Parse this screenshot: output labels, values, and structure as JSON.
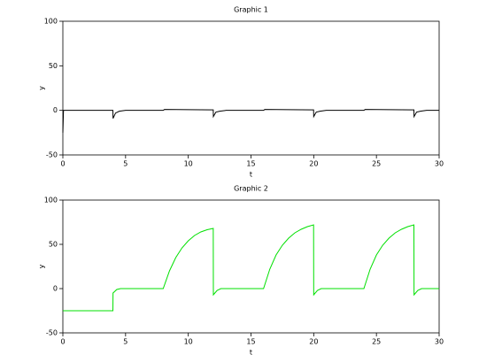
{
  "chart_data": [
    {
      "type": "line",
      "title": "Graphic 1",
      "x_label": "t",
      "y_label": "y",
      "xlim": [
        0,
        30
      ],
      "ylim": [
        -50,
        100
      ],
      "xticks": [
        0,
        5,
        10,
        15,
        20,
        25,
        30
      ],
      "yticks": [
        -50,
        0,
        50,
        100
      ],
      "series": [
        {
          "color": "#000000",
          "x": [
            0,
            0.05,
            3.99,
            4,
            4.2,
            4.5,
            5,
            8,
            8.1,
            11.99,
            12,
            12.2,
            12.5,
            13,
            16,
            16.1,
            19.99,
            20,
            20.2,
            20.5,
            21,
            24,
            24.1,
            27.99,
            28,
            28.2,
            28.5,
            29,
            30
          ],
          "values": [
            -25,
            0,
            0,
            -9,
            -3,
            -1,
            0,
            0,
            1,
            0.5,
            -7,
            -2,
            -1,
            0,
            0,
            1,
            0.5,
            -7,
            -2,
            -1,
            0,
            0,
            1,
            0.5,
            -7,
            -2,
            -1,
            0,
            0
          ]
        }
      ]
    },
    {
      "type": "line",
      "title": "Graphic 2",
      "x_label": "t",
      "y_label": "y",
      "xlim": [
        0,
        30
      ],
      "ylim": [
        -50,
        100
      ],
      "xticks": [
        0,
        5,
        10,
        15,
        20,
        25,
        30
      ],
      "yticks": [
        -50,
        0,
        50,
        100
      ],
      "series": [
        {
          "color": "#00e000",
          "x": [
            0,
            3.99,
            4,
            4.3,
            4.6,
            8,
            8.5,
            9,
            9.5,
            10,
            10.5,
            11,
            11.5,
            11.99,
            12,
            12.3,
            12.6,
            16,
            16.5,
            17,
            17.5,
            18,
            18.5,
            19,
            19.5,
            19.99,
            20,
            20.3,
            20.6,
            24,
            24.5,
            25,
            25.5,
            26,
            26.5,
            27,
            27.5,
            27.99,
            28,
            28.3,
            28.6,
            30
          ],
          "values": [
            -25,
            -25,
            -5,
            -1,
            0,
            0,
            20,
            35,
            46,
            54,
            60,
            64,
            66.5,
            68,
            -7,
            -2,
            0,
            0,
            22,
            38,
            49,
            57,
            63,
            67,
            70,
            72,
            -7,
            -2,
            0,
            0,
            22,
            38,
            49,
            57,
            63,
            67,
            70,
            72,
            -7,
            -2,
            0,
            0
          ]
        }
      ]
    }
  ]
}
